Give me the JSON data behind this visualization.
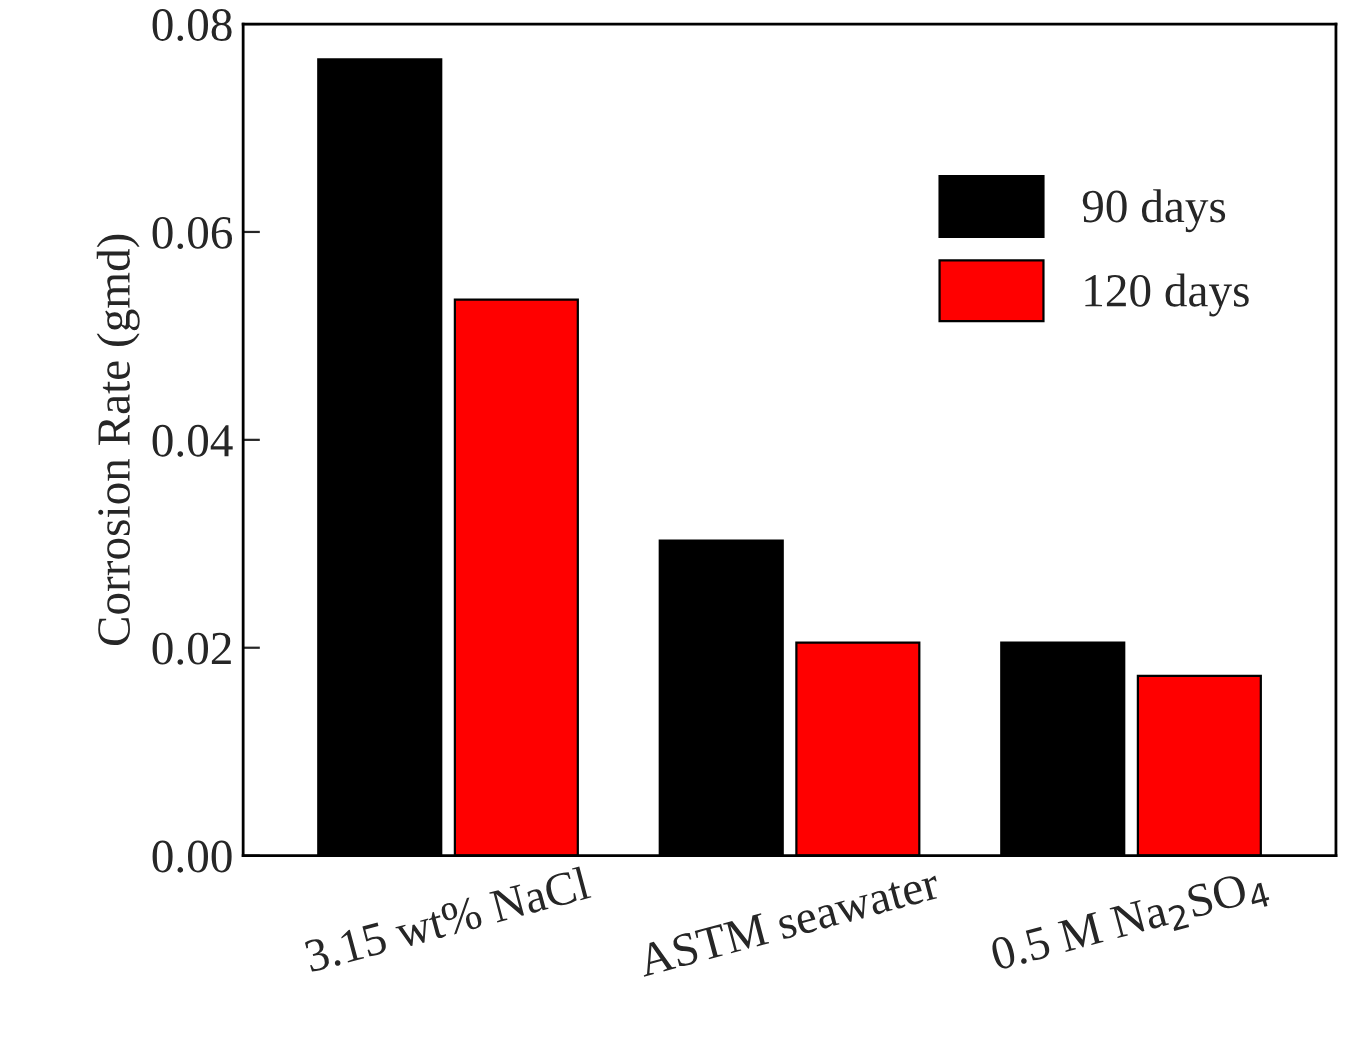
{
  "chart_data": {
    "type": "bar",
    "ylabel": "Corrosion Rate (gmd)",
    "categories": [
      "3.15 wt% NaCl",
      "ASTM seawater",
      "0.5 M Na$_{2}$SO$_{4}$"
    ],
    "series": [
      {
        "name": "90 days",
        "color": "#000000",
        "values": [
          0.0766,
          0.0303,
          0.0205
        ]
      },
      {
        "name": "120 days",
        "color": "#ff0000",
        "values": [
          0.0535,
          0.0205,
          0.0173
        ]
      }
    ],
    "ylim": [
      0,
      0.08
    ],
    "yticks": [
      {
        "value": 0,
        "label": "0.00"
      },
      {
        "value": 0.02,
        "label": "0.02"
      },
      {
        "value": 0.04,
        "label": "0.04"
      },
      {
        "value": 0.06,
        "label": "0.06"
      },
      {
        "value": 0.08,
        "label": "0.08"
      }
    ],
    "legend": "top right",
    "grid": false
  }
}
